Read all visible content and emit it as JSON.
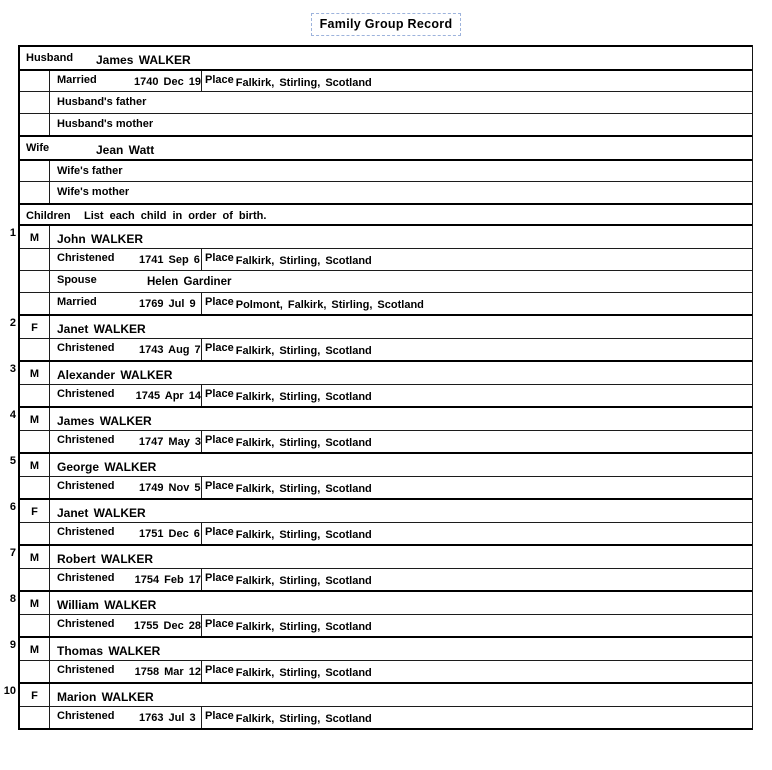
{
  "title": "Family Group Record",
  "colors": {
    "title_border": "#9db3dc",
    "table_line": "#000000",
    "text": "#000000",
    "background": "#ffffff"
  },
  "labels": {
    "christened": "Christened",
    "married": "Married",
    "spouse": "Spouse",
    "place": "Place"
  },
  "husband": {
    "label": "Husband",
    "name": "James WALKER",
    "married_date": "1740 Dec 19",
    "married_place": "Falkirk, Stirling, Scotland",
    "father_label": "Husband's father",
    "mother_label": "Husband's mother"
  },
  "wife": {
    "label": "Wife",
    "name": "Jean Watt",
    "father_label": "Wife's father",
    "mother_label": "Wife's mother"
  },
  "children_section": {
    "label": "Children",
    "instruction": "List each child in order of birth."
  },
  "children": [
    {
      "number": "1",
      "sex": "M",
      "name": "John WALKER",
      "christened_date": "1741 Sep 6",
      "christened_place": "Falkirk, Stirling, Scotland",
      "spouse_name": "Helen Gardiner",
      "married_date": "1769 Jul 9",
      "married_place": "Polmont, Falkirk, Stirling, Scotland"
    },
    {
      "number": "2",
      "sex": "F",
      "name": "Janet WALKER",
      "christened_date": "1743 Aug 7",
      "christened_place": "Falkirk, Stirling, Scotland"
    },
    {
      "number": "3",
      "sex": "M",
      "name": "Alexander WALKER",
      "christened_date": "1745 Apr 14",
      "christened_place": "Falkirk, Stirling, Scotland"
    },
    {
      "number": "4",
      "sex": "M",
      "name": "James WALKER",
      "christened_date": "1747 May 3",
      "christened_place": "Falkirk, Stirling, Scotland"
    },
    {
      "number": "5",
      "sex": "M",
      "name": "George WALKER",
      "christened_date": "1749 Nov 5",
      "christened_place": "Falkirk, Stirling, Scotland"
    },
    {
      "number": "6",
      "sex": "F",
      "name": "Janet WALKER",
      "christened_date": "1751 Dec 6",
      "christened_place": "Falkirk, Stirling, Scotland"
    },
    {
      "number": "7",
      "sex": "M",
      "name": "Robert WALKER",
      "christened_date": "1754 Feb 17",
      "christened_place": "Falkirk, Stirling, Scotland"
    },
    {
      "number": "8",
      "sex": "M",
      "name": "William WALKER",
      "christened_date": "1755 Dec 28",
      "christened_place": "Falkirk, Stirling, Scotland"
    },
    {
      "number": "9",
      "sex": "M",
      "name": "Thomas WALKER",
      "christened_date": "1758 Mar 12",
      "christened_place": "Falkirk, Stirling, Scotland"
    },
    {
      "number": "10",
      "sex": "F",
      "name": "Marion WALKER",
      "christened_date": "1763 Jul 3",
      "christened_place": "Falkirk, Stirling, Scotland"
    }
  ]
}
